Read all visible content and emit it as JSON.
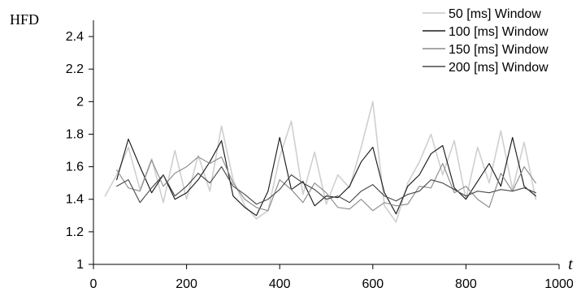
{
  "chart_data": {
    "type": "line",
    "xlabel": "t",
    "ylabel": "HFD",
    "xlim": [
      0,
      1000
    ],
    "ylim": [
      1,
      2.5
    ],
    "x_ticks": [
      0,
      200,
      400,
      600,
      800,
      1000
    ],
    "x_tick_labels": [
      "0",
      "200",
      "400",
      "600",
      "800",
      "1000"
    ],
    "y_ticks": [
      1,
      1.2,
      1.4,
      1.6,
      1.8,
      2,
      2.2,
      2.4
    ],
    "y_tick_labels": [
      "1",
      "1.2",
      "1.4",
      "1.6",
      "1.8",
      "2",
      "2.2",
      "2.4"
    ],
    "grid": false,
    "legend_position": "top-right",
    "series": [
      {
        "name": "50 [ms] Window",
        "color": "#cfcfcf",
        "x": [
          25,
          50,
          75,
          100,
          125,
          150,
          175,
          200,
          225,
          250,
          275,
          300,
          325,
          350,
          375,
          400,
          425,
          450,
          475,
          500,
          525,
          550,
          575,
          600,
          625,
          650,
          675,
          700,
          725,
          750,
          775,
          800,
          825,
          850,
          875,
          900,
          925,
          950
        ],
        "y": [
          1.42,
          1.55,
          1.72,
          1.46,
          1.65,
          1.38,
          1.7,
          1.4,
          1.67,
          1.45,
          1.85,
          1.52,
          1.36,
          1.28,
          1.33,
          1.66,
          1.88,
          1.43,
          1.69,
          1.37,
          1.55,
          1.47,
          1.72,
          2.0,
          1.36,
          1.26,
          1.5,
          1.63,
          1.8,
          1.55,
          1.76,
          1.4,
          1.72,
          1.5,
          1.82,
          1.46,
          1.75,
          1.4
        ]
      },
      {
        "name": "100 [ms] Window",
        "color": "#1c1c1c",
        "x": [
          50,
          75,
          100,
          125,
          150,
          175,
          200,
          225,
          250,
          275,
          300,
          325,
          350,
          375,
          400,
          425,
          450,
          475,
          500,
          525,
          550,
          575,
          600,
          625,
          650,
          675,
          700,
          725,
          750,
          775,
          800,
          825,
          850,
          875,
          900,
          925,
          950
        ],
        "y": [
          1.52,
          1.77,
          1.6,
          1.44,
          1.55,
          1.4,
          1.44,
          1.52,
          1.63,
          1.76,
          1.42,
          1.35,
          1.3,
          1.45,
          1.78,
          1.46,
          1.51,
          1.36,
          1.42,
          1.41,
          1.48,
          1.63,
          1.72,
          1.44,
          1.31,
          1.48,
          1.55,
          1.68,
          1.73,
          1.47,
          1.4,
          1.51,
          1.62,
          1.48,
          1.78,
          1.48,
          1.42
        ]
      },
      {
        "name": "150 [ms] Window",
        "color": "#8c8c8c",
        "x": [
          50,
          75,
          100,
          125,
          150,
          175,
          200,
          225,
          250,
          275,
          300,
          325,
          350,
          375,
          400,
          425,
          450,
          475,
          500,
          525,
          550,
          575,
          600,
          625,
          650,
          675,
          700,
          725,
          750,
          775,
          800,
          825,
          850,
          875,
          900,
          925,
          950
        ],
        "y": [
          1.58,
          1.47,
          1.45,
          1.64,
          1.48,
          1.56,
          1.6,
          1.66,
          1.62,
          1.66,
          1.5,
          1.4,
          1.35,
          1.33,
          1.52,
          1.46,
          1.38,
          1.5,
          1.44,
          1.35,
          1.34,
          1.4,
          1.33,
          1.38,
          1.36,
          1.37,
          1.48,
          1.47,
          1.62,
          1.44,
          1.48,
          1.4,
          1.35,
          1.56,
          1.45,
          1.6,
          1.5
        ]
      },
      {
        "name": "200 [ms] Window",
        "color": "#4a4a4a",
        "x": [
          50,
          75,
          100,
          125,
          150,
          175,
          200,
          225,
          250,
          275,
          300,
          325,
          350,
          375,
          400,
          425,
          450,
          475,
          500,
          525,
          550,
          575,
          600,
          625,
          650,
          675,
          700,
          725,
          750,
          775,
          800,
          825,
          850,
          875,
          900,
          925,
          950
        ],
        "y": [
          1.48,
          1.52,
          1.38,
          1.47,
          1.55,
          1.42,
          1.48,
          1.56,
          1.5,
          1.6,
          1.48,
          1.43,
          1.37,
          1.4,
          1.46,
          1.55,
          1.5,
          1.46,
          1.4,
          1.42,
          1.38,
          1.45,
          1.49,
          1.42,
          1.39,
          1.43,
          1.45,
          1.52,
          1.5,
          1.46,
          1.42,
          1.45,
          1.44,
          1.46,
          1.45,
          1.47,
          1.44
        ]
      }
    ]
  }
}
